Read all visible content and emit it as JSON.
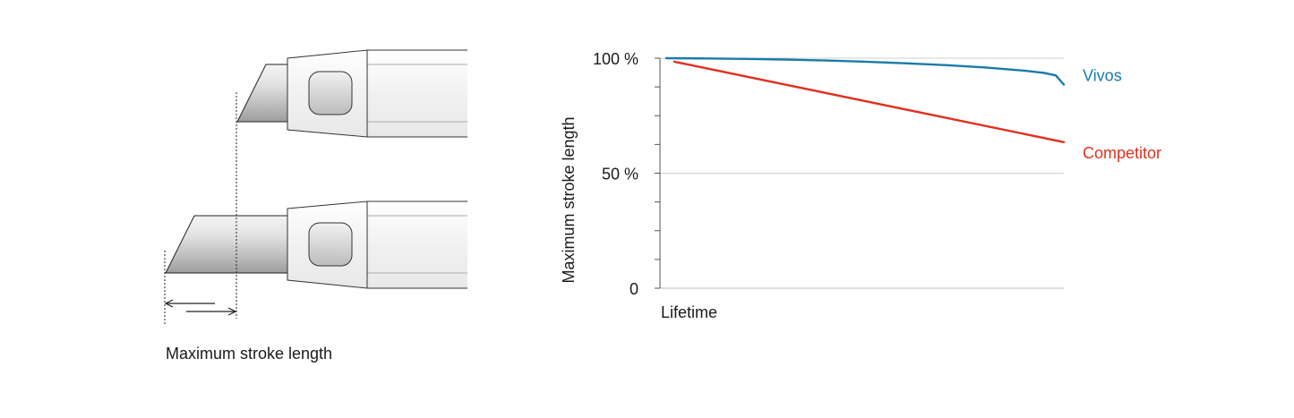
{
  "diagram": {
    "caption": "Maximum stroke length"
  },
  "chart_data": {
    "type": "line",
    "title": "",
    "xlabel": "Lifetime",
    "ylabel": "Maximum stroke length",
    "ylim": [
      0,
      100
    ],
    "yticks": [
      {
        "value": 0,
        "label": "0"
      },
      {
        "value": 50,
        "label": "50 %"
      },
      {
        "value": 100,
        "label": "100 %"
      }
    ],
    "grid": true,
    "series": [
      {
        "name": "Vivos",
        "color": "#1a7aa8",
        "x": [
          0,
          0.1,
          0.2,
          0.3,
          0.4,
          0.5,
          0.6,
          0.7,
          0.8,
          0.9,
          0.95,
          0.98,
          1.0
        ],
        "values": [
          100,
          99.9,
          99.7,
          99.4,
          99.0,
          98.5,
          97.8,
          97.0,
          96.0,
          94.6,
          93.6,
          92.5,
          88.5
        ]
      },
      {
        "name": "Competitor",
        "color": "#e0301e",
        "x": [
          0.02,
          1.0
        ],
        "values": [
          98.5,
          63.5
        ]
      }
    ]
  }
}
